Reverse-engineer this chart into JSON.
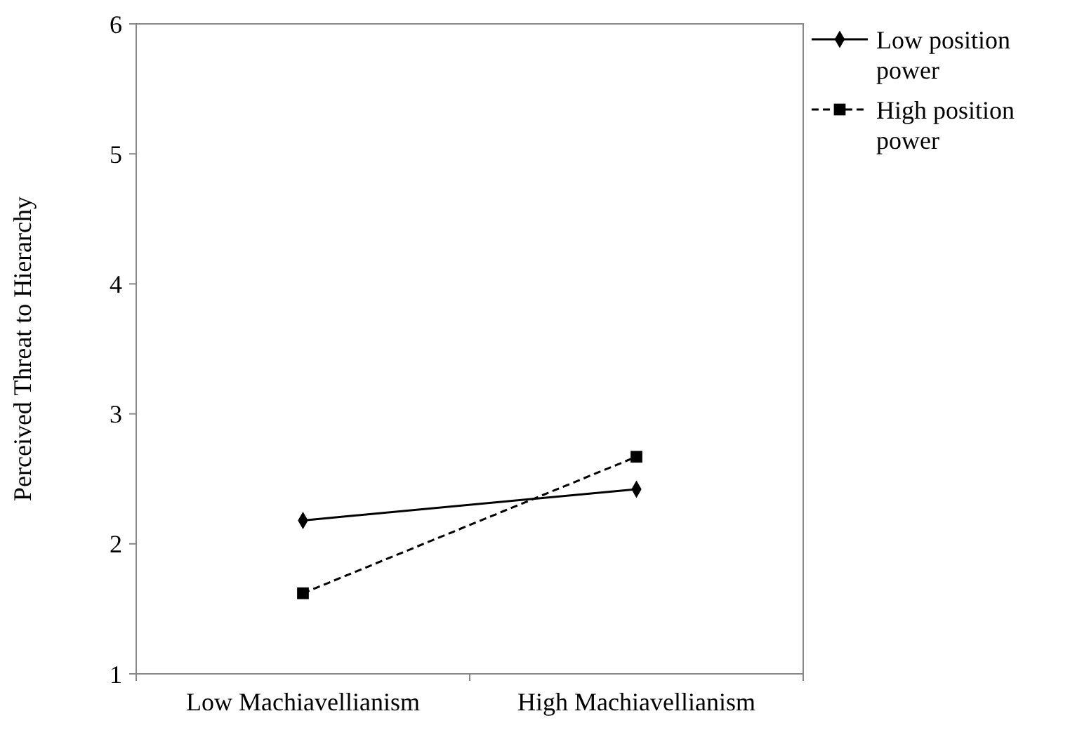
{
  "chart_data": {
    "type": "line",
    "ylabel": "Perceived Threat to Hierarchy",
    "categories": [
      "Low Machiavellianism",
      "High Machiavellianism"
    ],
    "ylim": [
      1,
      6
    ],
    "yticks": [
      1,
      2,
      3,
      4,
      5,
      6
    ],
    "grid": false,
    "legend": "top right",
    "series": [
      {
        "name": "Low position power",
        "color": "#000000",
        "values": [
          2.18,
          2.42
        ],
        "marker": "diamond",
        "line_style": "solid"
      },
      {
        "name": "High position power",
        "color": "#000000",
        "values": [
          1.62,
          2.67
        ],
        "marker": "square",
        "line_style": "dashed"
      }
    ]
  }
}
